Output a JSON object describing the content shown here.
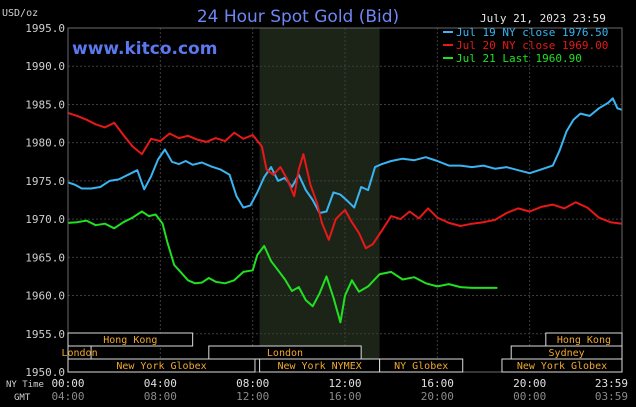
{
  "chart_data": {
    "type": "line",
    "title": "24 Hour Spot Gold (Bid)",
    "watermark": "www.kitco.com",
    "date_label": "July 21, 2023 23:59",
    "y_unit_label": "USD/oz",
    "ylim": [
      1950.0,
      1995.0
    ],
    "y_ticks": [
      {
        "value": 1995,
        "label": "1995.0"
      },
      {
        "value": 1990,
        "label": "1990.0"
      },
      {
        "value": 1985,
        "label": "1985.0"
      },
      {
        "value": 1980,
        "label": "1980.0"
      },
      {
        "value": 1975,
        "label": "1975.0"
      },
      {
        "value": 1970,
        "label": "1970.0"
      },
      {
        "value": 1965,
        "label": "1965.0"
      },
      {
        "value": 1960,
        "label": "1960.0"
      },
      {
        "value": 1955,
        "label": "1955.0"
      },
      {
        "value": 1950,
        "label": "1950.0"
      }
    ],
    "xlim_hours": [
      0,
      24
    ],
    "x_ticks_ny": [
      {
        "hour": 0,
        "label": "00:00"
      },
      {
        "hour": 4,
        "label": "04:00"
      },
      {
        "hour": 8,
        "label": "08:00"
      },
      {
        "hour": 12,
        "label": "12:00"
      },
      {
        "hour": 16,
        "label": "16:00"
      },
      {
        "hour": 20,
        "label": "20:00"
      },
      {
        "hour": 24,
        "label": "23:59"
      }
    ],
    "x_ticks_gmt": [
      "04:00",
      "08:00",
      "12:00",
      "16:00",
      "20:00",
      "00:00",
      "03:59"
    ],
    "x_row_labels": {
      "ny": "NY Time",
      "gmt": "GMT"
    },
    "grid": true,
    "legend_position": "top-right",
    "shaded_session_hours": [
      8.3,
      13.5
    ],
    "colors": {
      "background": "#000000",
      "grid": "#3d3d3d",
      "shade": "#1c2418",
      "title": "#6d87f5",
      "watermark": "#5b78ee",
      "text": "#d0d0d0",
      "bar_fill": "#000000",
      "bar_stroke": "#dcdcdc",
      "bar_text": "#f0a830"
    },
    "series": [
      {
        "name": "Jul 19 NY close 1976.50",
        "color": "#3ab4f2",
        "points": [
          [
            0,
            1974.8
          ],
          [
            0.3,
            1974.5
          ],
          [
            0.6,
            1974.0
          ],
          [
            1,
            1974.0
          ],
          [
            1.4,
            1974.2
          ],
          [
            1.8,
            1975.0
          ],
          [
            2.2,
            1975.2
          ],
          [
            2.6,
            1975.8
          ],
          [
            3,
            1976.4
          ],
          [
            3.3,
            1973.9
          ],
          [
            3.6,
            1975.6
          ],
          [
            3.9,
            1977.8
          ],
          [
            4.2,
            1979.1
          ],
          [
            4.5,
            1977.5
          ],
          [
            4.8,
            1977.2
          ],
          [
            5.1,
            1977.6
          ],
          [
            5.4,
            1977.1
          ],
          [
            5.8,
            1977.4
          ],
          [
            6.2,
            1976.9
          ],
          [
            6.6,
            1976.5
          ],
          [
            7,
            1975.8
          ],
          [
            7.3,
            1973.0
          ],
          [
            7.6,
            1971.5
          ],
          [
            7.9,
            1971.8
          ],
          [
            8.2,
            1973.5
          ],
          [
            8.5,
            1975.5
          ],
          [
            8.8,
            1976.8
          ],
          [
            9.1,
            1975.0
          ],
          [
            9.4,
            1975.4
          ],
          [
            9.7,
            1974.2
          ],
          [
            10,
            1975.8
          ],
          [
            10.3,
            1973.8
          ],
          [
            10.6,
            1972.5
          ],
          [
            10.9,
            1970.8
          ],
          [
            11.2,
            1971.0
          ],
          [
            11.5,
            1973.5
          ],
          [
            11.8,
            1973.2
          ],
          [
            12.1,
            1972.4
          ],
          [
            12.4,
            1971.5
          ],
          [
            12.7,
            1974.2
          ],
          [
            13,
            1973.8
          ],
          [
            13.3,
            1976.8
          ],
          [
            13.6,
            1977.2
          ],
          [
            14,
            1977.6
          ],
          [
            14.5,
            1977.9
          ],
          [
            15,
            1977.7
          ],
          [
            15.5,
            1978.1
          ],
          [
            16,
            1977.6
          ],
          [
            16.5,
            1977.0
          ],
          [
            17,
            1977.0
          ],
          [
            17.5,
            1976.8
          ],
          [
            18,
            1977.0
          ],
          [
            18.5,
            1976.6
          ],
          [
            19,
            1976.8
          ],
          [
            19.5,
            1976.4
          ],
          [
            20,
            1976.0
          ],
          [
            20.5,
            1976.5
          ],
          [
            21,
            1977.0
          ],
          [
            21.3,
            1979.0
          ],
          [
            21.6,
            1981.5
          ],
          [
            21.9,
            1983.0
          ],
          [
            22.2,
            1983.8
          ],
          [
            22.6,
            1983.5
          ],
          [
            23,
            1984.5
          ],
          [
            23.4,
            1985.2
          ],
          [
            23.6,
            1985.8
          ],
          [
            23.8,
            1984.5
          ],
          [
            24,
            1984.3
          ]
        ]
      },
      {
        "name": "Jul 20 NY close 1969.00",
        "color": "#e81818",
        "points": [
          [
            0,
            1983.9
          ],
          [
            0.4,
            1983.5
          ],
          [
            0.8,
            1983.0
          ],
          [
            1.2,
            1982.4
          ],
          [
            1.6,
            1982.0
          ],
          [
            2,
            1982.6
          ],
          [
            2.4,
            1981.0
          ],
          [
            2.8,
            1979.5
          ],
          [
            3.2,
            1978.5
          ],
          [
            3.6,
            1980.5
          ],
          [
            4,
            1980.2
          ],
          [
            4.4,
            1981.2
          ],
          [
            4.8,
            1980.6
          ],
          [
            5.2,
            1980.9
          ],
          [
            5.6,
            1980.4
          ],
          [
            6,
            1980.1
          ],
          [
            6.4,
            1980.6
          ],
          [
            6.8,
            1980.2
          ],
          [
            7.2,
            1981.3
          ],
          [
            7.6,
            1980.5
          ],
          [
            8,
            1981.0
          ],
          [
            8.4,
            1979.5
          ],
          [
            8.6,
            1976.5
          ],
          [
            8.9,
            1975.8
          ],
          [
            9.2,
            1976.8
          ],
          [
            9.5,
            1975.2
          ],
          [
            9.8,
            1973.0
          ],
          [
            10,
            1976.5
          ],
          [
            10.2,
            1978.5
          ],
          [
            10.5,
            1974.5
          ],
          [
            10.8,
            1972.0
          ],
          [
            11,
            1969.5
          ],
          [
            11.3,
            1967.3
          ],
          [
            11.6,
            1970.0
          ],
          [
            12,
            1971.2
          ],
          [
            12.3,
            1969.6
          ],
          [
            12.6,
            1968.2
          ],
          [
            12.9,
            1966.2
          ],
          [
            13.2,
            1966.7
          ],
          [
            13.6,
            1968.5
          ],
          [
            14,
            1970.4
          ],
          [
            14.4,
            1970.0
          ],
          [
            14.8,
            1971.0
          ],
          [
            15.2,
            1970.1
          ],
          [
            15.6,
            1971.4
          ],
          [
            16,
            1970.2
          ],
          [
            16.5,
            1969.5
          ],
          [
            17,
            1969.1
          ],
          [
            17.5,
            1969.4
          ],
          [
            18,
            1969.6
          ],
          [
            18.5,
            1969.9
          ],
          [
            19,
            1970.8
          ],
          [
            19.5,
            1971.4
          ],
          [
            20,
            1971.0
          ],
          [
            20.5,
            1971.6
          ],
          [
            21,
            1971.9
          ],
          [
            21.5,
            1971.4
          ],
          [
            22,
            1972.2
          ],
          [
            22.5,
            1971.5
          ],
          [
            23,
            1970.2
          ],
          [
            23.5,
            1969.6
          ],
          [
            24,
            1969.4
          ]
        ]
      },
      {
        "name": "Jul 21 Last 1960.90",
        "color": "#20e020",
        "points": [
          [
            0,
            1969.5
          ],
          [
            0.4,
            1969.6
          ],
          [
            0.8,
            1969.8
          ],
          [
            1.2,
            1969.2
          ],
          [
            1.6,
            1969.4
          ],
          [
            2,
            1968.8
          ],
          [
            2.4,
            1969.6
          ],
          [
            2.8,
            1970.2
          ],
          [
            3.2,
            1971.0
          ],
          [
            3.5,
            1970.4
          ],
          [
            3.8,
            1970.6
          ],
          [
            4.1,
            1969.4
          ],
          [
            4.3,
            1967.0
          ],
          [
            4.6,
            1964.0
          ],
          [
            4.9,
            1963.0
          ],
          [
            5.2,
            1962.0
          ],
          [
            5.5,
            1961.6
          ],
          [
            5.8,
            1961.7
          ],
          [
            6.1,
            1962.3
          ],
          [
            6.4,
            1961.8
          ],
          [
            6.8,
            1961.6
          ],
          [
            7.2,
            1962.0
          ],
          [
            7.6,
            1963.1
          ],
          [
            8,
            1963.3
          ],
          [
            8.2,
            1965.3
          ],
          [
            8.5,
            1966.5
          ],
          [
            8.8,
            1964.5
          ],
          [
            9.1,
            1963.3
          ],
          [
            9.4,
            1962.1
          ],
          [
            9.7,
            1960.6
          ],
          [
            10,
            1961.1
          ],
          [
            10.3,
            1959.4
          ],
          [
            10.6,
            1958.6
          ],
          [
            10.9,
            1960.3
          ],
          [
            11.2,
            1962.5
          ],
          [
            11.5,
            1959.7
          ],
          [
            11.8,
            1956.5
          ],
          [
            12,
            1960.0
          ],
          [
            12.3,
            1962.0
          ],
          [
            12.6,
            1960.5
          ],
          [
            13,
            1961.2
          ],
          [
            13.5,
            1962.8
          ],
          [
            14,
            1963.1
          ],
          [
            14.5,
            1962.1
          ],
          [
            15,
            1962.4
          ],
          [
            15.5,
            1961.6
          ],
          [
            16,
            1961.2
          ],
          [
            16.5,
            1961.5
          ],
          [
            17,
            1961.1
          ],
          [
            17.5,
            1961.0
          ],
          [
            18,
            1961.0
          ],
          [
            18.6,
            1961.0
          ]
        ]
      }
    ],
    "sessions": {
      "rows": [
        [
          {
            "label": "Hong Kong",
            "start": 0,
            "end": 5.4
          },
          {
            "label": "Hong Kong",
            "start": 20.7,
            "end": 24
          }
        ],
        [
          {
            "label": "London",
            "start": 0,
            "end": 1.0
          },
          {
            "label": "London",
            "start": 6.1,
            "end": 12.7
          },
          {
            "label": "Sydney",
            "start": 19.2,
            "end": 24
          }
        ],
        [
          {
            "label": "New York Globex",
            "start": 0,
            "end": 8.1
          },
          {
            "label": "New York NYMEX",
            "start": 8.3,
            "end": 13.5
          },
          {
            "label": "NY Globex",
            "start": 13.5,
            "end": 17.1
          },
          {
            "label": "New York Globex",
            "start": 18.8,
            "end": 24
          }
        ]
      ]
    }
  }
}
